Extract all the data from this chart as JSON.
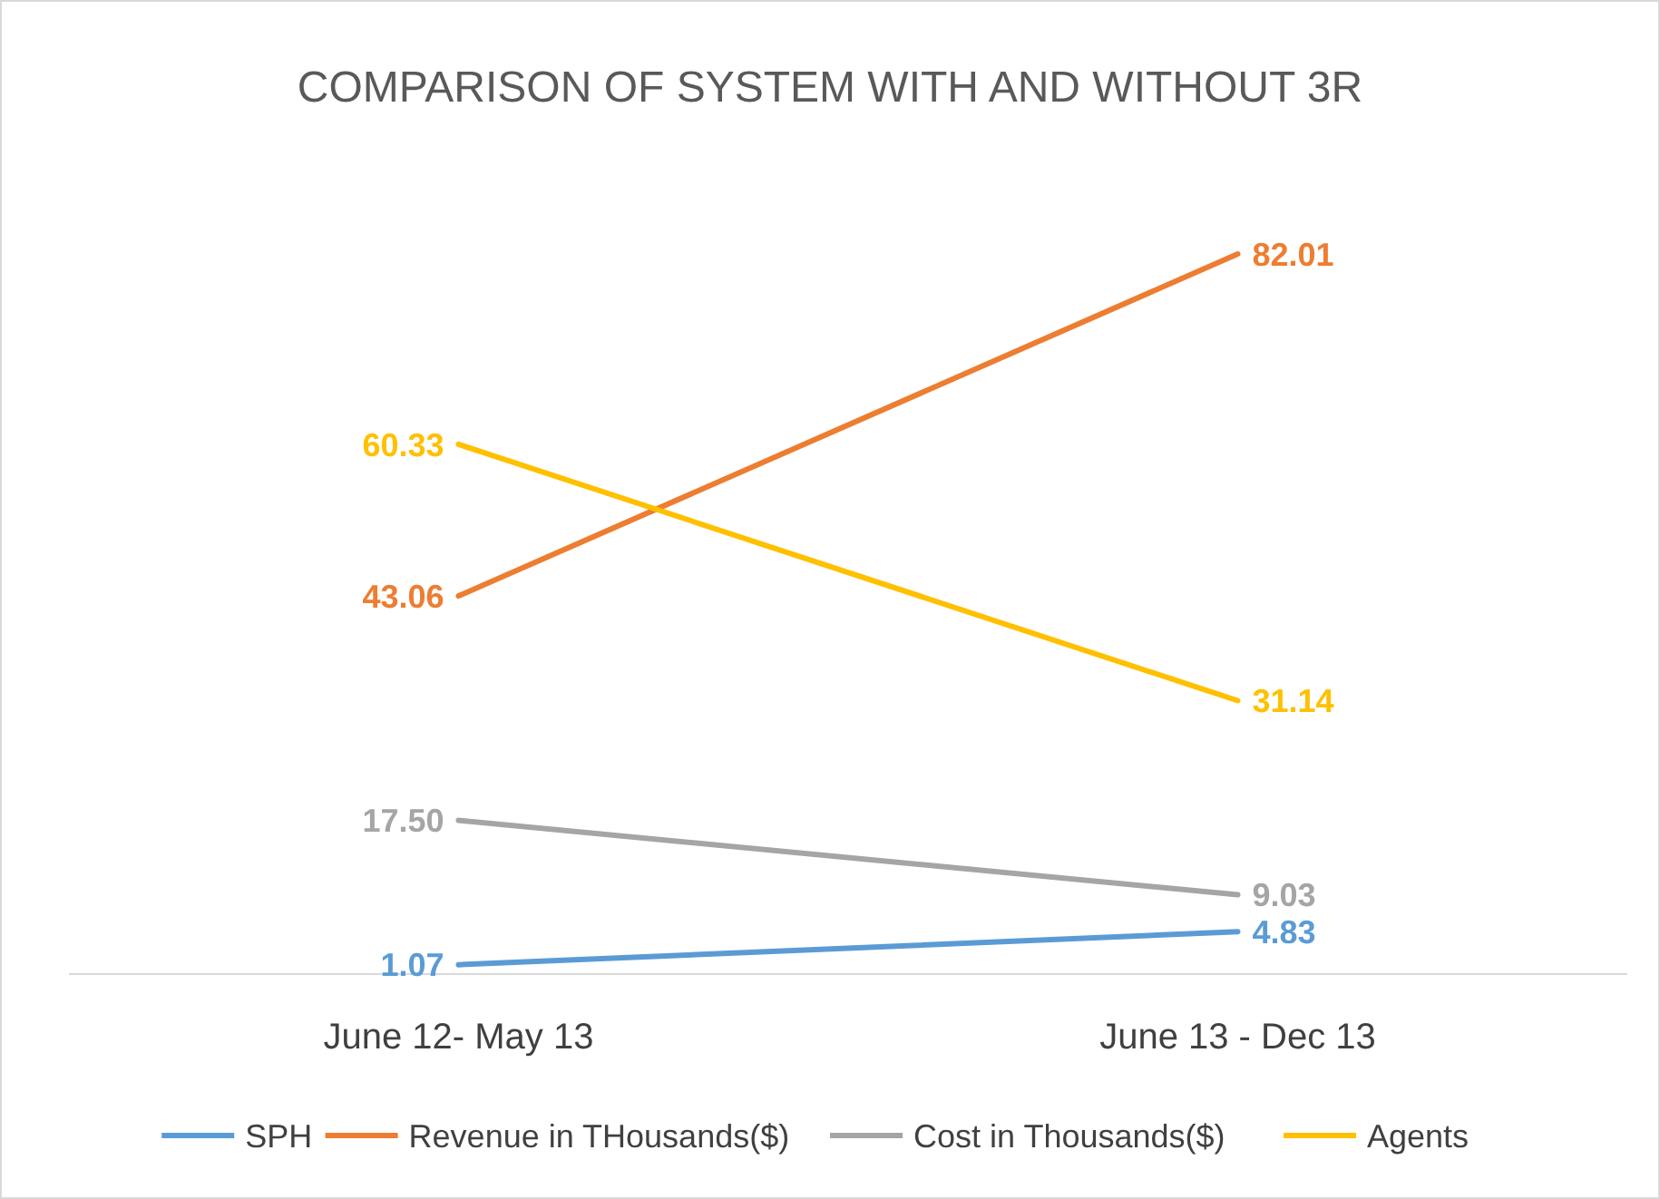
{
  "chart_data": {
    "type": "line",
    "title": "COMPARISON OF SYSTEM WITH AND WITHOUT 3R",
    "categories": [
      "June 12- May 13",
      "June 13 - Dec 13"
    ],
    "series": [
      {
        "name": "SPH",
        "color": "#5b9bd5",
        "values": [
          1.07,
          4.83
        ],
        "value_labels": [
          "1.07",
          "4.83"
        ]
      },
      {
        "name": "Revenue in THousands($)",
        "color": "#ed7d31",
        "values": [
          43.06,
          82.01
        ],
        "value_labels": [
          "43.06",
          "82.01"
        ]
      },
      {
        "name": "Cost in Thousands($)",
        "color": "#a5a5a5",
        "values": [
          17.5,
          9.03
        ],
        "value_labels": [
          "17.50",
          "9.03"
        ]
      },
      {
        "name": "Agents",
        "color": "#ffc000",
        "values": [
          60.33,
          31.14
        ],
        "value_labels": [
          "60.33",
          "31.14"
        ]
      }
    ],
    "tick_labels": "x",
    "legend": "bottom",
    "marker": "none",
    "line_style": "solid"
  }
}
